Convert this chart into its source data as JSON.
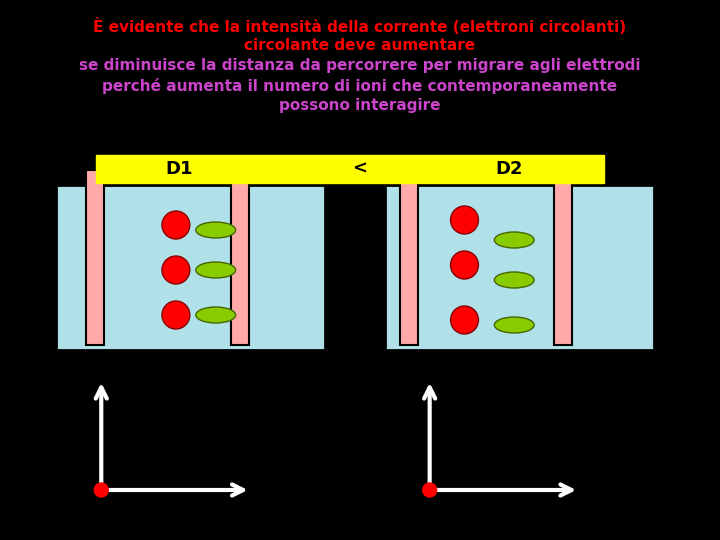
{
  "bg_color": "#000000",
  "title_line1": "È evidente che la intensità della corrente (elettroni circolanti)",
  "title_line2": "circolante deve aumentare",
  "title_line3": "se diminuisce la distanza da percorrere per migrare agli elettrodi",
  "title_line4": "perché aumenta il numero di ioni che contemporaneamente",
  "title_line5": "possono interagire",
  "title_color1": "#ff0000",
  "title_color2": "#cc44cc",
  "label_bg": "#ffff00",
  "label_text": "#000000",
  "tank_bg": "#b0e0e8",
  "tank_border": "#000000",
  "electrode_color": "#ffaaaa",
  "electrode_border": "#000000",
  "red_ion_color": "#ff0000",
  "green_ion_color": "#88cc00",
  "arrow_color": "#ffffff",
  "arrow_dot_color": "#ff0000"
}
